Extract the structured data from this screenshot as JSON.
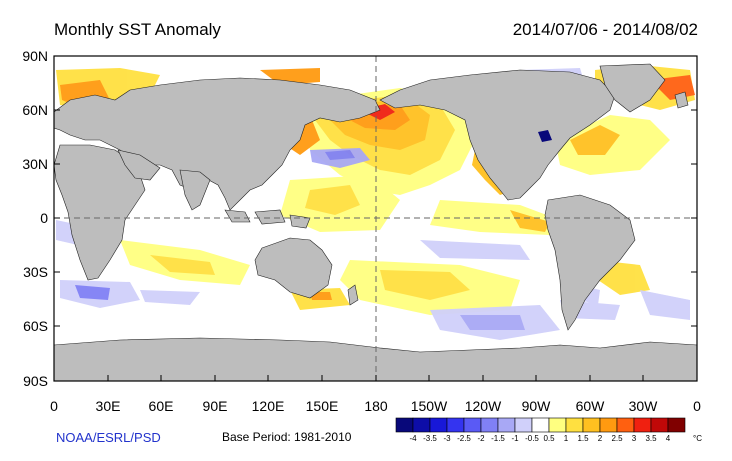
{
  "title": "Monthly SST Anomaly",
  "date_range": "2014/07/06 - 2014/08/02",
  "credit": "NOAA/ESRL/PSD",
  "base_period": "Base Period: 1981-2010",
  "lat_labels": [
    "90N",
    "60N",
    "30N",
    "0",
    "30S",
    "60S",
    "90S"
  ],
  "lon_labels": [
    "0",
    "30E",
    "60E",
    "90E",
    "120E",
    "150E",
    "180",
    "150W",
    "120W",
    "90W",
    "60W",
    "30W",
    "0"
  ],
  "colorbar": {
    "unit": "°C",
    "labels": [
      "-4",
      "-3.5",
      "-3",
      "-2.5",
      "-2",
      "-1.5",
      "-1",
      "-0.5",
      "0.5",
      "1",
      "1.5",
      "2",
      "2.5",
      "3",
      "3.5",
      "4"
    ],
    "colors": [
      "#08087a",
      "#0d0da8",
      "#1818d8",
      "#3434f0",
      "#5a5af5",
      "#8080f5",
      "#a8a8f5",
      "#d0d0fa",
      "#ffffff",
      "#ffff80",
      "#ffe040",
      "#ffc020",
      "#ff9a10",
      "#ff6010",
      "#f02010",
      "#c00808",
      "#800000"
    ]
  },
  "colors": {
    "land": "#bdbdbd",
    "ocean": "#ffffff",
    "coast": "#222222"
  }
}
